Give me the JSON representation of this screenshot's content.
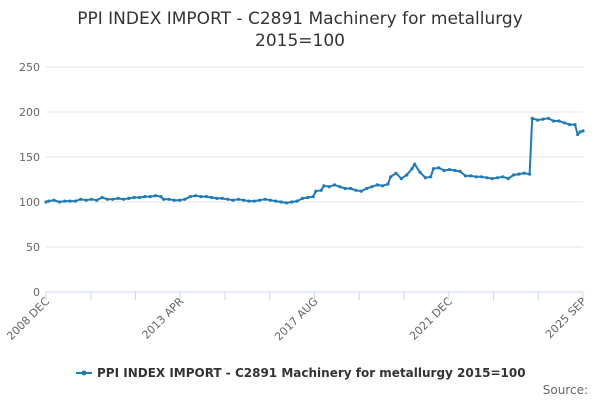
{
  "chart_data": {
    "type": "line",
    "title": "PPI INDEX IMPORT - C2891 Machinery for metallurgy",
    "subtitle": "2015=100",
    "x_tick_labels": [
      "2008 DEC",
      "2013 APR",
      "2017 AUG",
      "2021 DEC",
      "2025 SEP"
    ],
    "x_range": [
      "2008-12",
      "2025-09"
    ],
    "y_ticks": [
      0,
      50,
      100,
      150,
      200,
      250
    ],
    "ylim": [
      0,
      250
    ],
    "grid": "horizontal",
    "legend_position": "bottom",
    "source_label": "Source:",
    "series": [
      {
        "name": "PPI INDEX IMPORT - C2891 Machinery for metallurgy 2015=100",
        "color": "#1f7ab8",
        "points": [
          [
            "2008-12",
            100
          ],
          [
            "2009-01",
            101
          ],
          [
            "2009-03",
            102
          ],
          [
            "2009-05",
            100
          ],
          [
            "2009-07",
            101
          ],
          [
            "2009-09",
            101
          ],
          [
            "2009-11",
            101
          ],
          [
            "2010-01",
            103
          ],
          [
            "2010-03",
            102
          ],
          [
            "2010-05",
            103
          ],
          [
            "2010-07",
            102
          ],
          [
            "2010-09",
            105
          ],
          [
            "2010-11",
            103
          ],
          [
            "2011-01",
            103
          ],
          [
            "2011-03",
            104
          ],
          [
            "2011-05",
            103
          ],
          [
            "2011-07",
            104
          ],
          [
            "2011-09",
            105
          ],
          [
            "2011-11",
            105
          ],
          [
            "2012-01",
            106
          ],
          [
            "2012-03",
            106
          ],
          [
            "2012-05",
            107
          ],
          [
            "2012-07",
            106
          ],
          [
            "2012-08",
            103
          ],
          [
            "2012-10",
            103
          ],
          [
            "2012-12",
            102
          ],
          [
            "2013-02",
            102
          ],
          [
            "2013-04",
            103
          ],
          [
            "2013-06",
            106
          ],
          [
            "2013-08",
            107
          ],
          [
            "2013-10",
            106
          ],
          [
            "2013-12",
            106
          ],
          [
            "2014-02",
            105
          ],
          [
            "2014-04",
            104
          ],
          [
            "2014-06",
            104
          ],
          [
            "2014-08",
            103
          ],
          [
            "2014-10",
            102
          ],
          [
            "2014-12",
            103
          ],
          [
            "2015-02",
            102
          ],
          [
            "2015-04",
            101
          ],
          [
            "2015-06",
            101
          ],
          [
            "2015-08",
            102
          ],
          [
            "2015-10",
            103
          ],
          [
            "2015-12",
            102
          ],
          [
            "2016-02",
            101
          ],
          [
            "2016-04",
            100
          ],
          [
            "2016-06",
            99
          ],
          [
            "2016-08",
            100
          ],
          [
            "2016-10",
            101
          ],
          [
            "2016-12",
            104
          ],
          [
            "2017-02",
            105
          ],
          [
            "2017-04",
            106
          ],
          [
            "2017-05",
            112
          ],
          [
            "2017-07",
            113
          ],
          [
            "2017-08",
            118
          ],
          [
            "2017-10",
            117
          ],
          [
            "2017-12",
            119
          ],
          [
            "2018-02",
            117
          ],
          [
            "2018-04",
            115
          ],
          [
            "2018-06",
            115
          ],
          [
            "2018-08",
            113
          ],
          [
            "2018-10",
            112
          ],
          [
            "2018-12",
            115
          ],
          [
            "2019-02",
            117
          ],
          [
            "2019-04",
            119
          ],
          [
            "2019-06",
            118
          ],
          [
            "2019-08",
            120
          ],
          [
            "2019-09",
            128
          ],
          [
            "2019-11",
            132
          ],
          [
            "2020-01",
            126
          ],
          [
            "2020-03",
            130
          ],
          [
            "2020-05",
            137
          ],
          [
            "2020-06",
            142
          ],
          [
            "2020-08",
            133
          ],
          [
            "2020-10",
            127
          ],
          [
            "2020-12",
            128
          ],
          [
            "2021-01",
            137
          ],
          [
            "2021-03",
            138
          ],
          [
            "2021-05",
            135
          ],
          [
            "2021-07",
            136
          ],
          [
            "2021-09",
            135
          ],
          [
            "2021-11",
            134
          ],
          [
            "2022-01",
            129
          ],
          [
            "2022-03",
            129
          ],
          [
            "2022-05",
            128
          ],
          [
            "2022-07",
            128
          ],
          [
            "2022-09",
            127
          ],
          [
            "2022-11",
            126
          ],
          [
            "2023-01",
            127
          ],
          [
            "2023-03",
            128
          ],
          [
            "2023-05",
            126
          ],
          [
            "2023-07",
            130
          ],
          [
            "2023-09",
            131
          ],
          [
            "2023-11",
            132
          ],
          [
            "2024-01",
            131
          ],
          [
            "2024-02",
            193
          ],
          [
            "2024-04",
            191
          ],
          [
            "2024-06",
            192
          ],
          [
            "2024-08",
            193
          ],
          [
            "2024-10",
            190
          ],
          [
            "2024-12",
            190
          ],
          [
            "2025-02",
            188
          ],
          [
            "2025-04",
            186
          ],
          [
            "2025-06",
            186
          ],
          [
            "2025-07",
            175
          ],
          [
            "2025-08",
            178
          ],
          [
            "2025-09",
            179
          ]
        ]
      }
    ]
  }
}
